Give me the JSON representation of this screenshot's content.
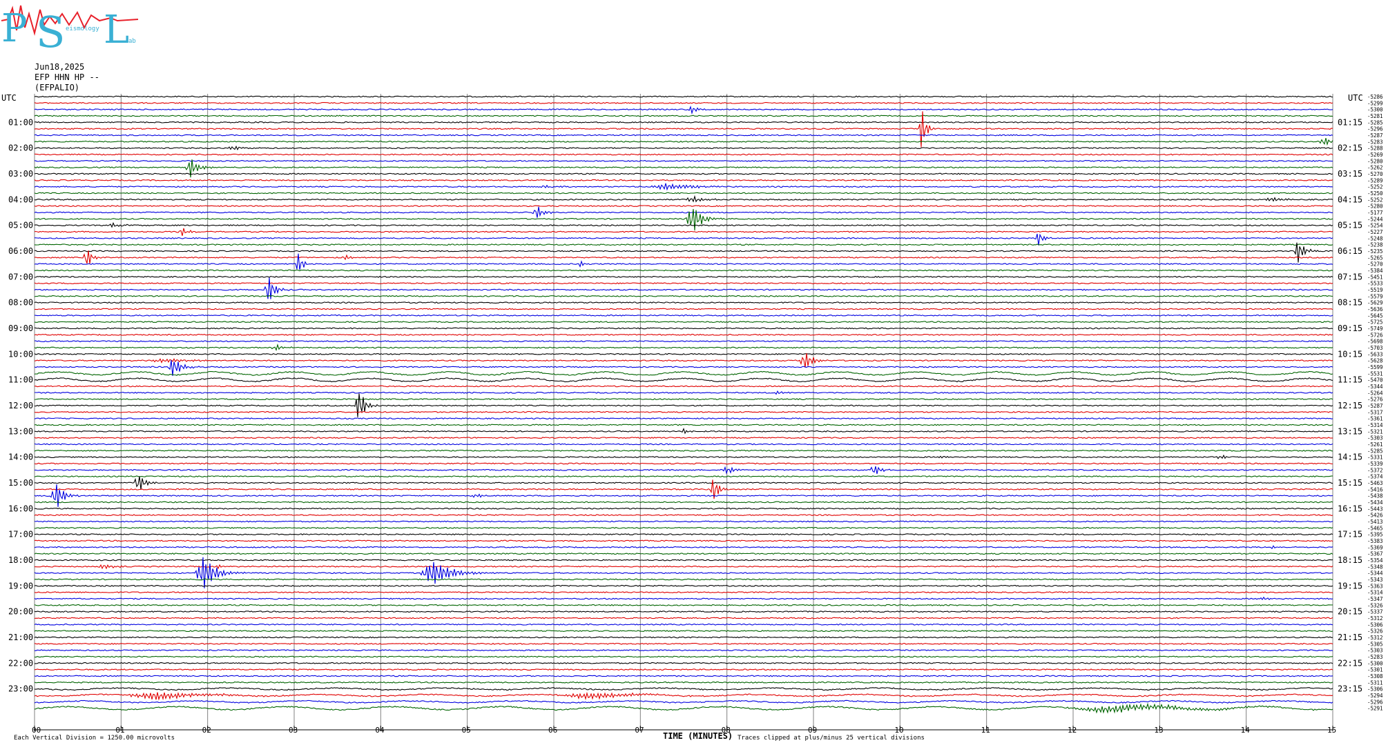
{
  "logo": {
    "letters": "PSL",
    "small_text_1": "eismology",
    "small_text_2": "ab",
    "colors": {
      "letters": "#3ab0d4",
      "trace": "#e8202a"
    }
  },
  "header": {
    "date": "Jun18,2025",
    "station": "EFP HHN HP --",
    "site": "(EFPALIO)"
  },
  "axis": {
    "left_unit": "UTC",
    "right_unit": "UTC",
    "x_label": "TIME (MINUTES)",
    "x_ticks": [
      "00",
      "01",
      "02",
      "03",
      "04",
      "05",
      "06",
      "07",
      "08",
      "09",
      "10",
      "11",
      "12",
      "13",
      "14",
      "15"
    ]
  },
  "footer": {
    "left_note": "Each Vertical Division = 1250.00 microvolts",
    "clip_note": "Traces clipped at plus/minus 25 vertical divisions"
  },
  "chart_data": {
    "type": "line",
    "title": "",
    "x_range_minutes": [
      0,
      15
    ],
    "rows_per_hour": 4,
    "trace_colors": [
      "#000000",
      "#e00000",
      "#0000e0",
      "#006400"
    ],
    "left_hour_labels": [
      "01:00",
      "02:00",
      "03:00",
      "04:00",
      "05:00",
      "06:00",
      "07:00",
      "08:00",
      "09:00",
      "10:00",
      "11:00",
      "12:00",
      "13:00",
      "14:00",
      "15:00",
      "16:00",
      "17:00",
      "18:00",
      "19:00",
      "20:00",
      "21:00",
      "22:00",
      "23:00"
    ],
    "right_hour_labels": [
      "01:15",
      "02:15",
      "03:15",
      "04:15",
      "05:15",
      "06:15",
      "07:15",
      "08:15",
      "09:15",
      "10:15",
      "11:15",
      "12:15",
      "13:15",
      "14:15",
      "15:15",
      "16:15",
      "17:15",
      "18:15",
      "19:15",
      "20:15",
      "21:15",
      "22:15",
      "23:15"
    ],
    "row_offsets": [
      "-5286",
      "-5299",
      "-5300",
      "-5281",
      "-5285",
      "-5296",
      "-5287",
      "-5283",
      "-5288",
      "-5269",
      "-5280",
      "-5262",
      "-5270",
      "-5289",
      "-5252",
      "-5250",
      "-5252",
      "-5280",
      "-5177",
      "-5244",
      "-5254",
      "-5227",
      "-5248",
      "-5238",
      "-5235",
      "-5265",
      "-5270",
      "-5384",
      "-5451",
      "-5533",
      "-5519",
      "-5579",
      "-5629",
      "-5636",
      "-5645",
      "-5725",
      "-5749",
      "-5726",
      "-5698",
      "-5703",
      "-5633",
      "-5628",
      "-5599",
      "-5531",
      "-5470",
      "-5344",
      "-5264",
      "-5276",
      "-5287",
      "-5317",
      "-5361",
      "-5314",
      "-5321",
      "-5303",
      "-5261",
      "-5285",
      "-5331",
      "-5339",
      "-5372",
      "-5374",
      "-5463",
      "-5416",
      "-5438",
      "-5434",
      "-5443",
      "-5426",
      "-5413",
      "-5465",
      "-5395",
      "-5383",
      "-5369",
      "-5367",
      "-5354",
      "-5348",
      "-5344",
      "-5343",
      "-5363",
      "-5314",
      "-5347",
      "-5326",
      "-5337",
      "-5312",
      "-5306",
      "-5326",
      "-5312",
      "-5305",
      "-5303",
      "-5283",
      "-5300",
      "-5301",
      "-5308",
      "-5311",
      "-5306",
      "-5294",
      "-5296",
      "-5291"
    ],
    "events": [
      {
        "row": 2,
        "minute": 7.6,
        "amp": 0.6,
        "dur": 0.2
      },
      {
        "row": 5,
        "minute": 10.25,
        "amp": 3.5,
        "dur": 0.15
      },
      {
        "row": 7,
        "minute": 14.9,
        "amp": 0.7,
        "dur": 0.25
      },
      {
        "row": 8,
        "minute": 2.3,
        "amp": 0.3,
        "dur": 0.3
      },
      {
        "row": 11,
        "minute": 1.8,
        "amp": 1.6,
        "dur": 0.25
      },
      {
        "row": 14,
        "minute": 7.3,
        "amp": 0.5,
        "dur": 0.8
      },
      {
        "row": 14,
        "minute": 5.9,
        "amp": 0.3,
        "dur": 0.3
      },
      {
        "row": 16,
        "minute": 14.3,
        "amp": 0.4,
        "dur": 0.3
      },
      {
        "row": 16,
        "minute": 7.6,
        "amp": 0.5,
        "dur": 0.4
      },
      {
        "row": 18,
        "minute": 5.8,
        "amp": 1.2,
        "dur": 0.2
      },
      {
        "row": 19,
        "minute": 7.6,
        "amp": 2.4,
        "dur": 0.3
      },
      {
        "row": 20,
        "minute": 0.9,
        "amp": 0.3,
        "dur": 0.4
      },
      {
        "row": 21,
        "minute": 1.7,
        "amp": 0.7,
        "dur": 0.2
      },
      {
        "row": 22,
        "minute": 11.6,
        "amp": 1.2,
        "dur": 0.15
      },
      {
        "row": 24,
        "minute": 14.6,
        "amp": 2.0,
        "dur": 0.2
      },
      {
        "row": 25,
        "minute": 0.6,
        "amp": 2.0,
        "dur": 0.15
      },
      {
        "row": 25,
        "minute": 3.6,
        "amp": 0.3,
        "dur": 0.3
      },
      {
        "row": 26,
        "minute": 3.05,
        "amp": 1.8,
        "dur": 0.15
      },
      {
        "row": 26,
        "minute": 6.3,
        "amp": 0.6,
        "dur": 0.15
      },
      {
        "row": 30,
        "minute": 2.7,
        "amp": 2.5,
        "dur": 0.2
      },
      {
        "row": 39,
        "minute": 2.8,
        "amp": 0.4,
        "dur": 0.3
      },
      {
        "row": 41,
        "minute": 8.9,
        "amp": 1.6,
        "dur": 0.25
      },
      {
        "row": 41,
        "minute": 1.5,
        "amp": 0.3,
        "dur": 0.8
      },
      {
        "row": 42,
        "minute": 1.6,
        "amp": 1.5,
        "dur": 0.3
      },
      {
        "row": 46,
        "minute": 8.6,
        "amp": 0.3,
        "dur": 0.3
      },
      {
        "row": 48,
        "minute": 3.75,
        "amp": 2.8,
        "dur": 0.2
      },
      {
        "row": 52,
        "minute": 7.5,
        "amp": 0.4,
        "dur": 0.2
      },
      {
        "row": 56,
        "minute": 13.7,
        "amp": 0.5,
        "dur": 0.15
      },
      {
        "row": 56,
        "minute": 10.5,
        "amp": 0.2,
        "dur": 0.2
      },
      {
        "row": 58,
        "minute": 8.0,
        "amp": 0.6,
        "dur": 0.3
      },
      {
        "row": 58,
        "minute": 9.7,
        "amp": 1.0,
        "dur": 0.2
      },
      {
        "row": 60,
        "minute": 1.2,
        "amp": 1.8,
        "dur": 0.2
      },
      {
        "row": 61,
        "minute": 7.85,
        "amp": 2.4,
        "dur": 0.15
      },
      {
        "row": 62,
        "minute": 0.25,
        "amp": 2.3,
        "dur": 0.25
      },
      {
        "row": 62,
        "minute": 5.1,
        "amp": 0.3,
        "dur": 0.3
      },
      {
        "row": 70,
        "minute": 14.3,
        "amp": 0.3,
        "dur": 0.2
      },
      {
        "row": 73,
        "minute": 0.8,
        "amp": 0.5,
        "dur": 0.3
      },
      {
        "row": 73,
        "minute": 2.1,
        "amp": 0.3,
        "dur": 0.3
      },
      {
        "row": 74,
        "minute": 1.95,
        "amp": 2.8,
        "dur": 0.4
      },
      {
        "row": 74,
        "minute": 4.6,
        "amp": 2.0,
        "dur": 0.6
      },
      {
        "row": 78,
        "minute": 14.2,
        "amp": 0.2,
        "dur": 0.3
      },
      {
        "row": 93,
        "minute": 1.4,
        "amp": 0.6,
        "dur": 1.5
      },
      {
        "row": 93,
        "minute": 6.4,
        "amp": 0.5,
        "dur": 1.5
      },
      {
        "row": 95,
        "minute": 12.5,
        "amp": 0.6,
        "dur": 2.5
      }
    ]
  }
}
